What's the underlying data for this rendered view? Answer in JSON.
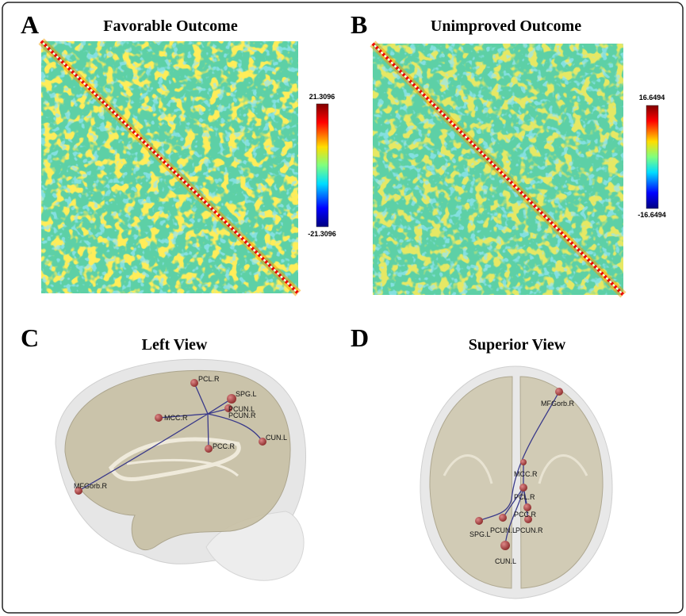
{
  "panels": [
    {
      "letter": "A",
      "title": "Favorable Outcome",
      "colorbar": {
        "max": "21.3096",
        "min": "-21.3096"
      }
    },
    {
      "letter": "B",
      "title": "Unimproved Outcome",
      "colorbar": {
        "max": "16.6494",
        "min": "-16.6494"
      }
    },
    {
      "letter": "C",
      "title": "Left View",
      "nodes": [
        "PCL.R",
        "SPG.L",
        "PCUN.L",
        "PCUN.R",
        "MCC.R",
        "PCC.R",
        "CUN.L",
        "MFGorb.R"
      ]
    },
    {
      "letter": "D",
      "title": "Superior View",
      "nodes": [
        "MFGorb.R",
        "MCC.R",
        "PCL.R",
        "PCC.R",
        "PCUN.L",
        "PCUN.R",
        "SPG.L",
        "CUN.L"
      ]
    }
  ]
}
